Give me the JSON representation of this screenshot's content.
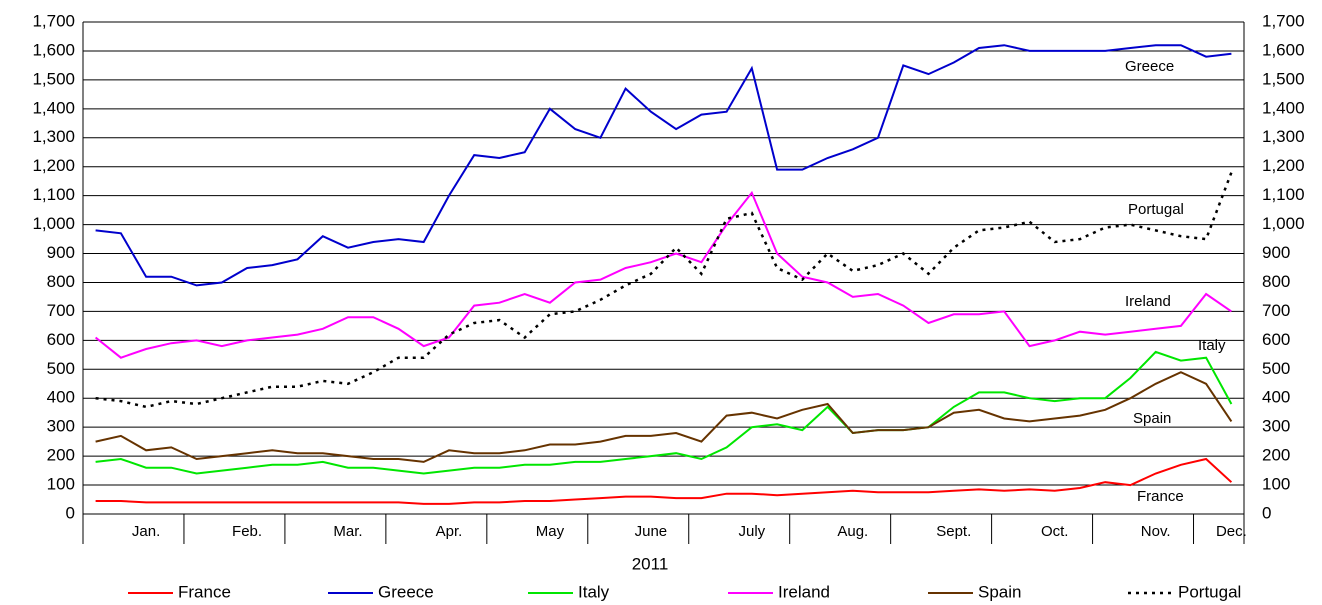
{
  "chart_data": {
    "type": "line",
    "x_label": "2011",
    "categories": [
      null,
      null,
      "Jan.",
      null,
      null,
      null,
      "Feb.",
      null,
      null,
      null,
      "Mar.",
      null,
      null,
      null,
      "Apr.",
      null,
      null,
      null,
      "May",
      null,
      null,
      null,
      "June",
      null,
      null,
      null,
      "July",
      null,
      null,
      null,
      "Aug.",
      null,
      null,
      null,
      "Sept.",
      null,
      null,
      null,
      "Oct.",
      null,
      null,
      null,
      "Nov.",
      null,
      null,
      "Dec."
    ],
    "series": [
      {
        "name": "France",
        "color": "#ff0000",
        "values": [
          45,
          45,
          40,
          40,
          40,
          40,
          40,
          40,
          40,
          40,
          40,
          40,
          40,
          35,
          35,
          40,
          40,
          45,
          45,
          50,
          55,
          60,
          60,
          55,
          55,
          70,
          70,
          65,
          70,
          75,
          80,
          75,
          75,
          75,
          80,
          85,
          80,
          85,
          80,
          90,
          110,
          100,
          140,
          170,
          190,
          110
        ]
      },
      {
        "name": "Greece",
        "color": "#0000cc",
        "values": [
          980,
          970,
          820,
          820,
          790,
          800,
          850,
          860,
          880,
          960,
          920,
          940,
          950,
          940,
          1100,
          1240,
          1230,
          1250,
          1400,
          1330,
          1300,
          1470,
          1390,
          1330,
          1380,
          1390,
          1540,
          1190,
          1190,
          1230,
          1260,
          1300,
          1550,
          1520,
          1560,
          1610,
          1620,
          1600,
          1600,
          1600,
          1600,
          1610,
          1620,
          1620,
          1580,
          1590
        ]
      },
      {
        "name": "Italy",
        "color": "#00e600",
        "values": [
          180,
          190,
          160,
          160,
          140,
          150,
          160,
          170,
          170,
          180,
          160,
          160,
          150,
          140,
          150,
          160,
          160,
          170,
          170,
          180,
          180,
          190,
          200,
          210,
          190,
          230,
          300,
          310,
          290,
          370,
          280,
          290,
          290,
          300,
          370,
          420,
          420,
          400,
          390,
          400,
          400,
          470,
          560,
          530,
          540,
          380
        ]
      },
      {
        "name": "Ireland",
        "color": "#ff00ff",
        "values": [
          610,
          540,
          570,
          590,
          600,
          580,
          600,
          610,
          620,
          640,
          680,
          680,
          640,
          580,
          610,
          720,
          730,
          760,
          730,
          800,
          810,
          850,
          870,
          900,
          870,
          1000,
          1110,
          900,
          820,
          800,
          750,
          760,
          720,
          660,
          690,
          690,
          700,
          580,
          600,
          630,
          620,
          630,
          640,
          650,
          760,
          700
        ]
      },
      {
        "name": "Spain",
        "color": "#663300",
        "values": [
          250,
          270,
          220,
          230,
          190,
          200,
          210,
          220,
          210,
          210,
          200,
          190,
          190,
          180,
          220,
          210,
          210,
          220,
          240,
          240,
          250,
          270,
          270,
          280,
          250,
          340,
          350,
          330,
          360,
          380,
          280,
          290,
          290,
          300,
          350,
          360,
          330,
          320,
          330,
          340,
          360,
          400,
          450,
          490,
          450,
          320
        ]
      },
      {
        "name": "Portugal",
        "color": "#000000",
        "dashed": true,
        "values": [
          400,
          390,
          370,
          390,
          380,
          400,
          420,
          440,
          440,
          460,
          450,
          490,
          540,
          540,
          620,
          660,
          670,
          610,
          690,
          700,
          740,
          790,
          830,
          920,
          830,
          1020,
          1040,
          850,
          810,
          900,
          840,
          860,
          900,
          830,
          920,
          980,
          990,
          1010,
          940,
          950,
          990,
          1000,
          980,
          960,
          950,
          1180
        ]
      }
    ],
    "ylim": [
      0,
      1700
    ],
    "yticks": [
      0,
      100,
      200,
      300,
      400,
      500,
      600,
      700,
      800,
      900,
      {
        "value": 1000,
        "label": "1,000"
      },
      {
        "value": 1100,
        "label": "1,100"
      },
      {
        "value": 1200,
        "label": "1,200"
      },
      {
        "value": 1300,
        "label": "1,300"
      },
      {
        "value": 1400,
        "label": "1,400"
      },
      {
        "value": 1500,
        "label": "1,500"
      },
      {
        "value": 1600,
        "label": "1,600"
      },
      {
        "value": 1700,
        "label": "1,700"
      }
    ],
    "y2lim": [
      0,
      1700
    ],
    "y2ticks": [
      0,
      100,
      200,
      300,
      400,
      500,
      600,
      700,
      800,
      900,
      {
        "value": 1000,
        "label": "1,000"
      },
      {
        "value": 1100,
        "label": "1,100"
      },
      {
        "value": 1200,
        "label": "1,200"
      },
      {
        "value": 1300,
        "label": "1,300"
      },
      {
        "value": 1400,
        "label": "1,400"
      },
      {
        "value": 1500,
        "label": "1,500"
      },
      {
        "value": 1600,
        "label": "1,600"
      },
      {
        "value": 1700,
        "label": "1,700"
      }
    ],
    "grid": true,
    "legend": "bottom"
  }
}
